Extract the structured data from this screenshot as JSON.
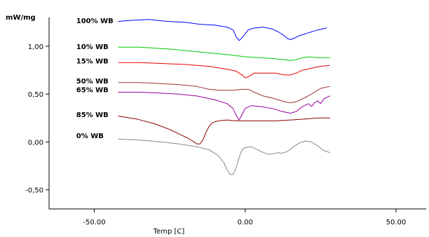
{
  "chart_data": {
    "type": "line",
    "ylabel": "mW/mg",
    "xlabel": "Temp  [C]",
    "xlim": [
      -65,
      60
    ],
    "ylim": [
      -0.7,
      1.3
    ],
    "x_ticks": [
      {
        "value": -50,
        "label": "-50.00"
      },
      {
        "value": 0,
        "label": "0.00"
      },
      {
        "value": 50,
        "label": "50.00"
      }
    ],
    "y_ticks": [
      {
        "value": 1.0,
        "label": "1,00"
      },
      {
        "value": 0.5,
        "label": "0,50"
      },
      {
        "value": 0.0,
        "label": "0,00"
      },
      {
        "value": -0.5,
        "label": "-0,50"
      }
    ],
    "grid": false,
    "series": [
      {
        "name": "100% WB",
        "color": "#0000ff",
        "label_at": [
          -56,
          1.27
        ],
        "points": [
          [
            -42,
            1.26
          ],
          [
            -38,
            1.27
          ],
          [
            -32,
            1.28
          ],
          [
            -26,
            1.26
          ],
          [
            -20,
            1.25
          ],
          [
            -15,
            1.23
          ],
          [
            -10,
            1.22
          ],
          [
            -6,
            1.2
          ],
          [
            -4,
            1.17
          ],
          [
            -3,
            1.1
          ],
          [
            -2,
            1.06
          ],
          [
            -1,
            1.09
          ],
          [
            0,
            1.13
          ],
          [
            1,
            1.17
          ],
          [
            3,
            1.19
          ],
          [
            6,
            1.2
          ],
          [
            9,
            1.18
          ],
          [
            11,
            1.15
          ],
          [
            13,
            1.11
          ],
          [
            14,
            1.08
          ],
          [
            15,
            1.07
          ],
          [
            16,
            1.08
          ],
          [
            18,
            1.11
          ],
          [
            21,
            1.14
          ],
          [
            24,
            1.17
          ],
          [
            27,
            1.19
          ]
        ]
      },
      {
        "name": "10% WB",
        "color": "#00cc00",
        "label_at": [
          -56,
          1.0
        ],
        "points": [
          [
            -42,
            0.99
          ],
          [
            -35,
            0.99
          ],
          [
            -25,
            0.97
          ],
          [
            -15,
            0.94
          ],
          [
            -5,
            0.91
          ],
          [
            0,
            0.89
          ],
          [
            5,
            0.88
          ],
          [
            10,
            0.87
          ],
          [
            13,
            0.86
          ],
          [
            15,
            0.85
          ],
          [
            17,
            0.86
          ],
          [
            19,
            0.88
          ],
          [
            21,
            0.89
          ],
          [
            24,
            0.88
          ],
          [
            28,
            0.88
          ]
        ]
      },
      {
        "name": "15% WB",
        "color": "#ee0000",
        "label_at": [
          -56,
          0.85
        ],
        "points": [
          [
            -42,
            0.83
          ],
          [
            -35,
            0.83
          ],
          [
            -28,
            0.82
          ],
          [
            -20,
            0.81
          ],
          [
            -12,
            0.79
          ],
          [
            -6,
            0.76
          ],
          [
            -3,
            0.74
          ],
          [
            -1,
            0.7
          ],
          [
            0,
            0.67
          ],
          [
            1,
            0.68
          ],
          [
            3,
            0.72
          ],
          [
            6,
            0.72
          ],
          [
            10,
            0.72
          ],
          [
            13,
            0.7
          ],
          [
            15,
            0.7
          ],
          [
            17,
            0.72
          ],
          [
            19,
            0.75
          ],
          [
            22,
            0.77
          ],
          [
            25,
            0.79
          ],
          [
            28,
            0.8
          ]
        ]
      },
      {
        "name": "50% WB",
        "color": "#993333",
        "label_at": [
          -56,
          0.64
        ],
        "points": [
          [
            -42,
            0.62
          ],
          [
            -35,
            0.62
          ],
          [
            -28,
            0.61
          ],
          [
            -22,
            0.6
          ],
          [
            -16,
            0.58
          ],
          [
            -12,
            0.55
          ],
          [
            -8,
            0.54
          ],
          [
            -4,
            0.54
          ],
          [
            -1,
            0.55
          ],
          [
            1,
            0.55
          ],
          [
            3,
            0.52
          ],
          [
            6,
            0.48
          ],
          [
            10,
            0.45
          ],
          [
            13,
            0.42
          ],
          [
            15,
            0.41
          ],
          [
            17,
            0.42
          ],
          [
            19,
            0.45
          ],
          [
            22,
            0.5
          ],
          [
            25,
            0.56
          ],
          [
            28,
            0.58
          ]
        ]
      },
      {
        "name": "65% WB",
        "color": "#990099",
        "label_at": [
          -56,
          0.55
        ],
        "points": [
          [
            -42,
            0.52
          ],
          [
            -35,
            0.52
          ],
          [
            -28,
            0.51
          ],
          [
            -22,
            0.5
          ],
          [
            -16,
            0.48
          ],
          [
            -10,
            0.44
          ],
          [
            -6,
            0.4
          ],
          [
            -4,
            0.35
          ],
          [
            -3,
            0.28
          ],
          [
            -2,
            0.23
          ],
          [
            -1,
            0.29
          ],
          [
            0,
            0.35
          ],
          [
            2,
            0.38
          ],
          [
            5,
            0.37
          ],
          [
            9,
            0.35
          ],
          [
            12,
            0.32
          ],
          [
            15,
            0.3
          ],
          [
            17,
            0.32
          ],
          [
            19,
            0.37
          ],
          [
            21,
            0.4
          ],
          [
            22,
            0.37
          ],
          [
            23,
            0.41
          ],
          [
            24,
            0.43
          ],
          [
            25,
            0.4
          ],
          [
            26,
            0.45
          ],
          [
            28,
            0.48
          ]
        ]
      },
      {
        "name": "85% WB",
        "color": "#880000",
        "label_at": [
          -56,
          0.29
        ],
        "points": [
          [
            -42,
            0.27
          ],
          [
            -36,
            0.24
          ],
          [
            -30,
            0.19
          ],
          [
            -25,
            0.13
          ],
          [
            -21,
            0.07
          ],
          [
            -19,
            0.04
          ],
          [
            -17,
            0.0
          ],
          [
            -16,
            -0.02
          ],
          [
            -15,
            -0.02
          ],
          [
            -14,
            0.02
          ],
          [
            -13,
            0.1
          ],
          [
            -12,
            0.16
          ],
          [
            -11,
            0.2
          ],
          [
            -9,
            0.22
          ],
          [
            -6,
            0.23
          ],
          [
            -3,
            0.22
          ],
          [
            -2,
            0.22
          ],
          [
            0,
            0.22
          ],
          [
            5,
            0.22
          ],
          [
            10,
            0.22
          ],
          [
            15,
            0.23
          ],
          [
            20,
            0.24
          ],
          [
            24,
            0.25
          ],
          [
            28,
            0.25
          ]
        ]
      },
      {
        "name": "0% WB",
        "color": "#888888",
        "label_at": [
          -56,
          0.07
        ],
        "points": [
          [
            -42,
            0.03
          ],
          [
            -35,
            0.02
          ],
          [
            -28,
            0.0
          ],
          [
            -22,
            -0.02
          ],
          [
            -16,
            -0.05
          ],
          [
            -12,
            -0.08
          ],
          [
            -9,
            -0.14
          ],
          [
            -7,
            -0.22
          ],
          [
            -6,
            -0.29
          ],
          [
            -5,
            -0.34
          ],
          [
            -4,
            -0.34
          ],
          [
            -3,
            -0.27
          ],
          [
            -2,
            -0.16
          ],
          [
            -1,
            -0.08
          ],
          [
            0,
            -0.06
          ],
          [
            2,
            -0.05
          ],
          [
            4,
            -0.08
          ],
          [
            6,
            -0.11
          ],
          [
            8,
            -0.13
          ],
          [
            10,
            -0.12
          ],
          [
            11,
            -0.11
          ],
          [
            12,
            -0.12
          ],
          [
            14,
            -0.1
          ],
          [
            16,
            -0.05
          ],
          [
            18,
            -0.01
          ],
          [
            20,
            0.01
          ],
          [
            22,
            0.0
          ],
          [
            24,
            -0.04
          ],
          [
            26,
            -0.09
          ],
          [
            28,
            -0.11
          ]
        ]
      }
    ]
  }
}
